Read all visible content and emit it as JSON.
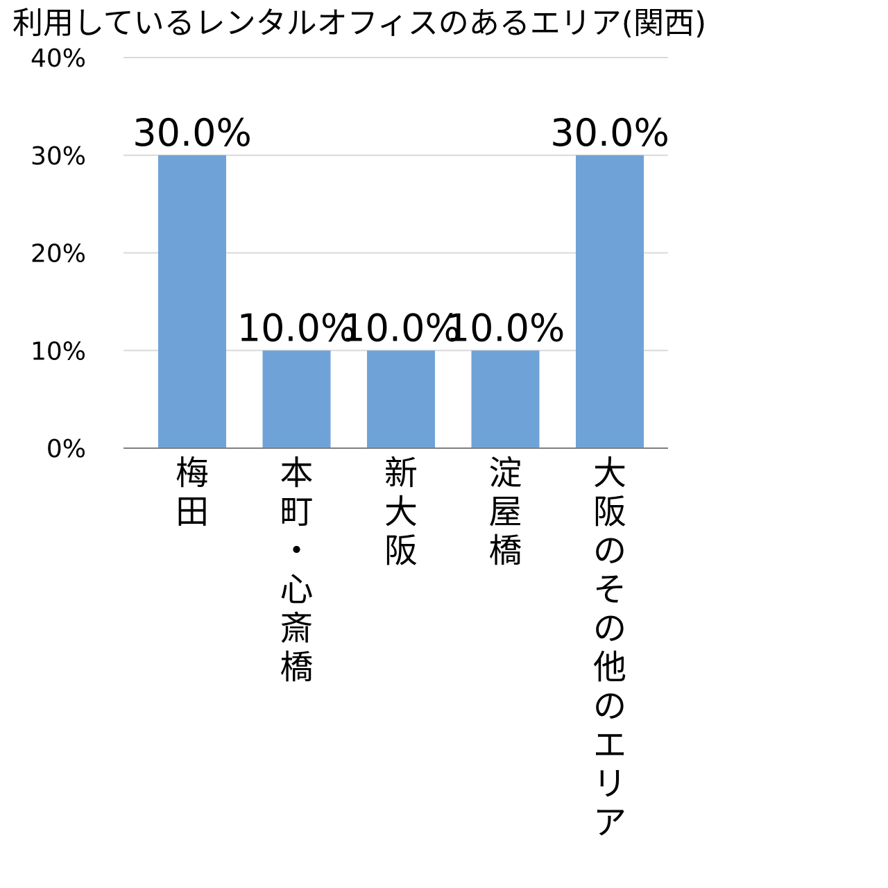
{
  "chart_data": {
    "type": "bar",
    "title": "利用しているレンタルオフィスのあるエリア(関西)",
    "categories": [
      "梅田",
      "本町・心斎橋",
      "新大阪",
      "淀屋橋",
      "大阪のその他のエリア"
    ],
    "values": [
      30.0,
      10.0,
      10.0,
      10.0,
      30.0
    ],
    "data_labels": [
      "30.0%",
      "10.0%",
      "10.0%",
      "10.0%",
      "30.0%"
    ],
    "y_ticks": [
      0,
      10,
      20,
      30,
      40
    ],
    "y_tick_labels": [
      "0%",
      "10%",
      "20%",
      "30%",
      "40%"
    ],
    "ylim": [
      0,
      40
    ],
    "xlabel": "",
    "ylabel": "",
    "grid": true,
    "legend": "none",
    "colors": {
      "bar": "#6fa3d7",
      "grid": "#d9d9d9",
      "axis": "#7f7f7f"
    }
  }
}
